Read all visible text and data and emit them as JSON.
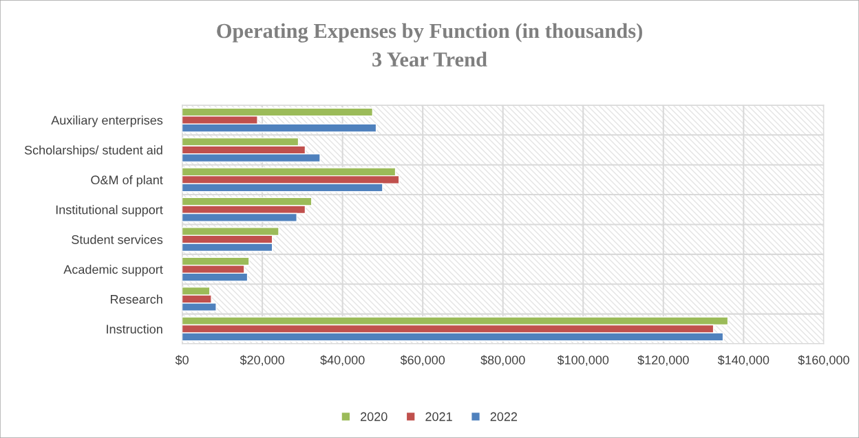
{
  "chart_data": {
    "type": "bar",
    "orientation": "horizontal",
    "title": "Operating Expenses by Function (in thousands)",
    "subtitle": "3 Year Trend",
    "categories": [
      "Auxiliary enterprises",
      "Scholarships/ student aid",
      "O&M of plant",
      "Institutional support",
      "Student services",
      "Academic support",
      "Research",
      "Instruction"
    ],
    "series": [
      {
        "name": "2020",
        "color": "#9bbb59",
        "values": [
          47500,
          29000,
          53200,
          32300,
          24100,
          16700,
          6900,
          136100
        ]
      },
      {
        "name": "2021",
        "color": "#c0504d",
        "values": [
          18800,
          30700,
          54100,
          30700,
          22500,
          15500,
          7300,
          132500
        ]
      },
      {
        "name": "2022",
        "color": "#4f81bd",
        "values": [
          48400,
          34400,
          50000,
          28600,
          22500,
          16300,
          8500,
          134900
        ]
      }
    ],
    "xlim": [
      0,
      160000
    ],
    "xticks": [
      {
        "value": 0,
        "label": "$0"
      },
      {
        "value": 20000,
        "label": "$20,000"
      },
      {
        "value": 40000,
        "label": "$40,000"
      },
      {
        "value": 60000,
        "label": "$60,000"
      },
      {
        "value": 80000,
        "label": "$80,000"
      },
      {
        "value": 100000,
        "label": "$100,000"
      },
      {
        "value": 120000,
        "label": "$120,000"
      },
      {
        "value": 140000,
        "label": "$140,000"
      },
      {
        "value": 160000,
        "label": "$160,000"
      }
    ],
    "grid": true,
    "legend": "bottom"
  }
}
